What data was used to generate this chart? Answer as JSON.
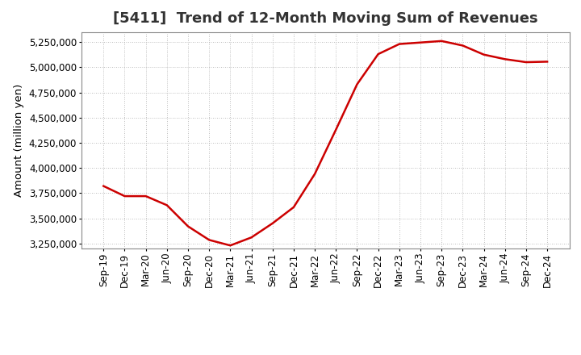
{
  "title": "[5411]  Trend of 12-Month Moving Sum of Revenues",
  "ylabel": "Amount (million yen)",
  "line_color": "#cc0000",
  "background_color": "#ffffff",
  "plot_bg_color": "#ffffff",
  "grid_color": "#aaaaaa",
  "ylim": [
    3200000,
    5350000
  ],
  "yticks": [
    3250000,
    3500000,
    3750000,
    4000000,
    4250000,
    4500000,
    4750000,
    5000000,
    5250000
  ],
  "x_labels": [
    "Sep-19",
    "Dec-19",
    "Mar-20",
    "Jun-20",
    "Sep-20",
    "Dec-20",
    "Mar-21",
    "Jun-21",
    "Sep-21",
    "Dec-21",
    "Mar-22",
    "Jun-22",
    "Sep-22",
    "Dec-22",
    "Mar-23",
    "Jun-23",
    "Sep-23",
    "Dec-23",
    "Mar-24",
    "Jun-24",
    "Sep-24",
    "Dec-24"
  ],
  "values": [
    3820000,
    3720000,
    3720000,
    3630000,
    3420000,
    3285000,
    3230000,
    3310000,
    3450000,
    3610000,
    3940000,
    4380000,
    4830000,
    5130000,
    5230000,
    5245000,
    5260000,
    5215000,
    5125000,
    5080000,
    5050000,
    5055000
  ],
  "title_fontsize": 13,
  "tick_fontsize": 8.5,
  "ylabel_fontsize": 9.5,
  "line_width": 1.8,
  "title_color": "#333333"
}
